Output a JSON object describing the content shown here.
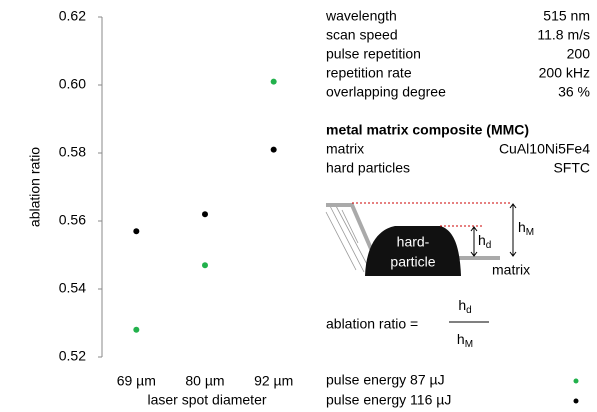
{
  "chart_data": {
    "type": "scatter",
    "categories": [
      "69 µm",
      "80 µm",
      "92 µm"
    ],
    "series": [
      {
        "name": "pulse energy 87 µJ",
        "color": "#22b14c",
        "values": [
          0.528,
          0.547,
          0.601
        ]
      },
      {
        "name": "pulse energy 116 µJ",
        "color": "#000000",
        "values": [
          0.557,
          0.562,
          0.581
        ]
      }
    ],
    "ylim": [
      0.52,
      0.62
    ],
    "yticks": [
      0.52,
      0.54,
      0.56,
      0.58,
      {
        "value": 0.6,
        "label": "0.60"
      },
      0.62
    ],
    "ylabel": "ablation ratio",
    "xlabel": "laser spot diameter"
  },
  "parameters": [
    {
      "label": "wavelength",
      "value": "515 nm"
    },
    {
      "label": "scan speed",
      "value": "11.8 m/s"
    },
    {
      "label": "pulse repetition",
      "value": "200"
    },
    {
      "label": "repetition rate",
      "value": "200 kHz"
    },
    {
      "label": "overlapping degree",
      "value": "36 %"
    }
  ],
  "material": {
    "title": "metal matrix composite (MMC)",
    "rows": [
      {
        "label": "matrix",
        "value": "CuAl10Ni5Fe4"
      },
      {
        "label": "hard particles",
        "value": "SFTC"
      }
    ]
  },
  "diagram": {
    "particle": [
      "hard-",
      "particle"
    ],
    "h_d": {
      "symbol": "h",
      "sub": "d"
    },
    "h_M": {
      "symbol": "h",
      "sub": "M"
    },
    "matrix": "matrix"
  },
  "formula": {
    "label": "ablation ratio =",
    "numerator": {
      "symbol": "h",
      "sub": "d"
    },
    "denominator": {
      "symbol": "h",
      "sub": "M"
    }
  }
}
